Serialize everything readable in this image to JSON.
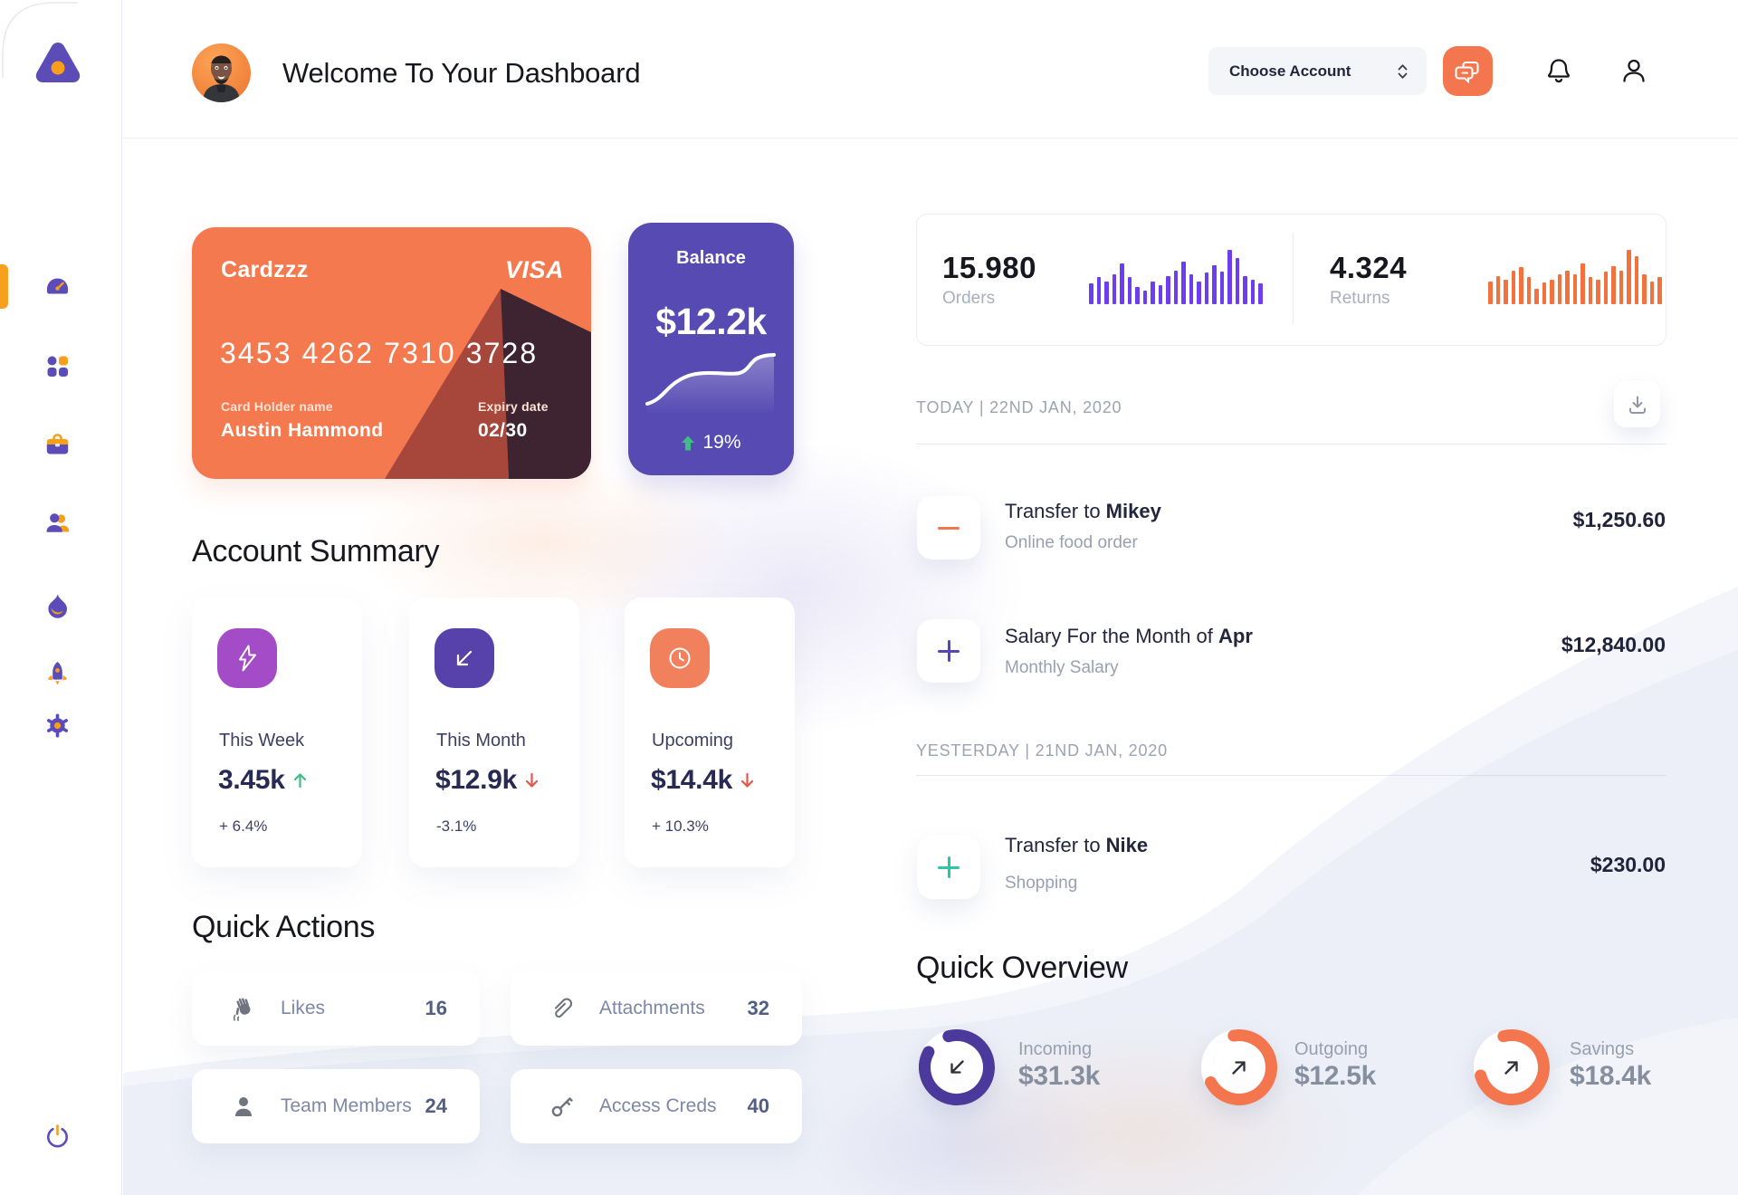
{
  "header": {
    "title": "Welcome To Your Dashboard",
    "account_select_label": "Choose Account"
  },
  "sidebar": {
    "logo": "triangle-logo",
    "items": [
      {
        "icon": "dashboard-gauge",
        "active": true
      },
      {
        "icon": "grid-apps",
        "active": false
      },
      {
        "icon": "briefcase",
        "active": false
      },
      {
        "icon": "users",
        "active": false
      },
      {
        "icon": "flame",
        "active": false
      },
      {
        "icon": "rocket",
        "active": false
      },
      {
        "icon": "gear",
        "active": false
      },
      {
        "icon": "power",
        "active": false
      }
    ]
  },
  "bank_card": {
    "name": "Cardzzz",
    "brand": "VISA",
    "number": "3453 4262 7310 3728",
    "holder_label": "Card Holder name",
    "holder": "Austin Hammond",
    "expiry_label": "Expiry date",
    "expiry": "02/30",
    "color": "#F5794F"
  },
  "balance_card": {
    "label": "Balance",
    "value": "$12.2k",
    "change": "19%",
    "trend": "up",
    "color": "#574BB3"
  },
  "stats": {
    "orders": {
      "value": "15.980",
      "label": "Orders",
      "color": "#6C3EF0",
      "spark": [
        0.38,
        0.5,
        0.42,
        0.55,
        0.75,
        0.5,
        0.32,
        0.25,
        0.42,
        0.35,
        0.52,
        0.62,
        0.78,
        0.55,
        0.42,
        0.58,
        0.72,
        0.6,
        1.0,
        0.85,
        0.52,
        0.45,
        0.38
      ]
    },
    "returns": {
      "value": "4.324",
      "label": "Returns",
      "color": "#F2713E",
      "spark": [
        0.42,
        0.52,
        0.45,
        0.62,
        0.68,
        0.5,
        0.28,
        0.4,
        0.45,
        0.55,
        0.62,
        0.55,
        0.75,
        0.5,
        0.45,
        0.6,
        0.7,
        0.62,
        1.0,
        0.88,
        0.55,
        0.42,
        0.5
      ]
    }
  },
  "summary": {
    "heading": "Account Summary",
    "cards": [
      {
        "icon": "lightning",
        "icon_bg": "#A44BC8",
        "label": "This Week",
        "value": "3.45k",
        "direction": "up",
        "delta": "+ 6.4%"
      },
      {
        "icon": "arrow-down-left",
        "icon_bg": "#5742AC",
        "label": "This Month",
        "value": "$12.9k",
        "direction": "down",
        "delta": "-3.1%"
      },
      {
        "icon": "clock",
        "icon_bg": "#F0815C",
        "label": "Upcoming",
        "value": "$14.4k",
        "direction": "down",
        "delta": "+ 10.3%"
      }
    ]
  },
  "quick_actions": {
    "heading": "Quick Actions",
    "items": [
      {
        "icon": "waving-hand",
        "label": "Likes",
        "count": "16"
      },
      {
        "icon": "paperclip",
        "label": "Attachments",
        "count": "32"
      },
      {
        "icon": "person",
        "label": "Team Members",
        "count": "24"
      },
      {
        "icon": "key",
        "label": "Access Creds",
        "count": "40"
      }
    ]
  },
  "transactions": {
    "groups": [
      {
        "date_label": "TODAY | 22ND JAN, 2020",
        "items": [
          {
            "symbol": "minus",
            "symbol_color": "#F4764E",
            "title_prefix": "Transfer to ",
            "title_bold": "Mikey",
            "subtitle": "Online food order",
            "amount": "$1,250.60"
          },
          {
            "symbol": "plus",
            "symbol_color": "#5946B5",
            "title_prefix": "Salary For the Month of ",
            "title_bold": "Apr",
            "subtitle": "Monthly Salary",
            "amount": "$12,840.00"
          }
        ]
      },
      {
        "date_label": "YESTERDAY | 21ND JAN, 2020",
        "items": [
          {
            "symbol": "plus",
            "symbol_color": "#2BC7A4",
            "title_prefix": "Transfer to ",
            "title_bold": "Nike",
            "subtitle": "Shopping",
            "amount": "$230.00"
          }
        ]
      }
    ]
  },
  "overview": {
    "heading": "Quick Overview",
    "items": [
      {
        "label": "Incoming",
        "value": "$31.3k",
        "direction": "in",
        "color": "#4B3A9B",
        "fill": 0.87,
        "rotate": -105
      },
      {
        "label": "Outgoing",
        "value": "$12.5k",
        "direction": "out",
        "color": "#F4764E",
        "fill": 0.7,
        "rotate": -100
      },
      {
        "label": "Savings",
        "value": "$18.4k",
        "direction": "out",
        "color": "#F4764E",
        "fill": 0.75,
        "rotate": -105
      }
    ]
  },
  "colors": {
    "accent_orange": "#F4764E",
    "accent_purple": "#574BB3",
    "sidebar_icon_purple": "#5B4CB8",
    "sidebar_icon_orange": "#F79E1B",
    "wave": "#ECEFF7",
    "positive": "#3FBE83",
    "negative": "#E2574C"
  }
}
